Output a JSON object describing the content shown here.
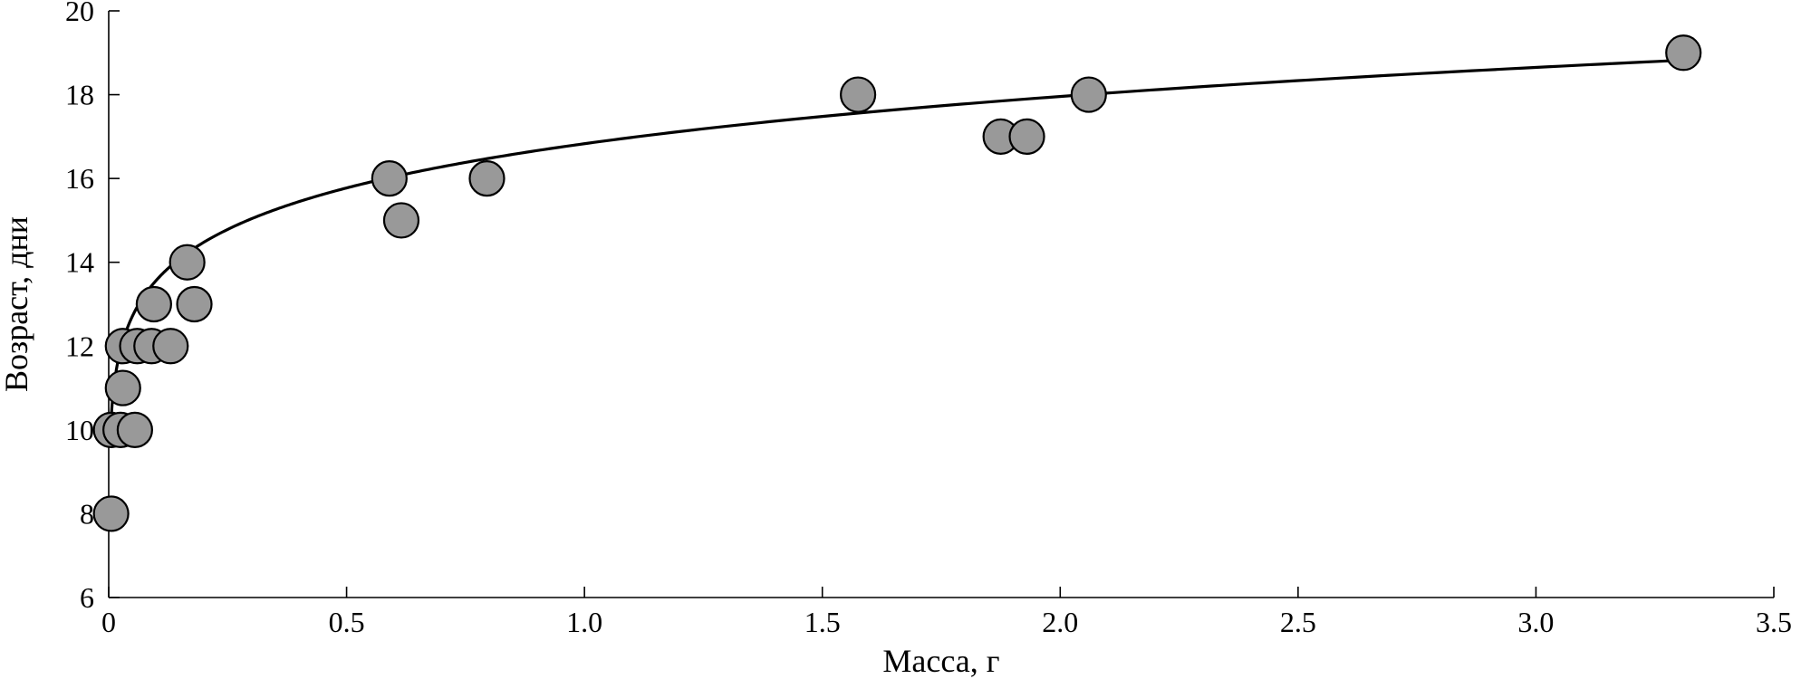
{
  "chart_data": {
    "type": "scatter",
    "xlabel": "Масса, г",
    "ylabel": "Возраст, дни",
    "xlim": [
      0,
      3.5
    ],
    "ylim": [
      6,
      20
    ],
    "x_ticks": [
      0,
      0.5,
      1.0,
      1.5,
      2.0,
      2.5,
      3.0,
      3.5
    ],
    "x_tick_labels": [
      "0",
      "0.5",
      "1.0",
      "1.5",
      "2.0",
      "2.5",
      "3.0",
      "3.5"
    ],
    "y_ticks": [
      6,
      8,
      10,
      12,
      14,
      16,
      18,
      20
    ],
    "y_tick_labels": [
      "6",
      "8",
      "10",
      "12",
      "14",
      "16",
      "18",
      "20"
    ],
    "grid": false,
    "marker_color": "#999999",
    "series": [
      {
        "points": [
          {
            "x": 0.005,
            "y": 8
          },
          {
            "x": 0.005,
            "y": 10
          },
          {
            "x": 0.025,
            "y": 10
          },
          {
            "x": 0.055,
            "y": 10
          },
          {
            "x": 0.03,
            "y": 11
          },
          {
            "x": 0.03,
            "y": 12
          },
          {
            "x": 0.06,
            "y": 12
          },
          {
            "x": 0.09,
            "y": 12
          },
          {
            "x": 0.13,
            "y": 12
          },
          {
            "x": 0.095,
            "y": 13
          },
          {
            "x": 0.18,
            "y": 13
          },
          {
            "x": 0.165,
            "y": 14
          },
          {
            "x": 0.59,
            "y": 16
          },
          {
            "x": 0.615,
            "y": 15
          },
          {
            "x": 0.795,
            "y": 16
          },
          {
            "x": 1.575,
            "y": 18
          },
          {
            "x": 1.875,
            "y": 17
          },
          {
            "x": 1.93,
            "y": 17
          },
          {
            "x": 2.06,
            "y": 18
          },
          {
            "x": 3.31,
            "y": 19
          }
        ]
      }
    ],
    "fit_curve": {
      "type": "power",
      "equation_form": "y = a * x^b",
      "a": 16.83,
      "b": 0.0935,
      "x_range": [
        0.005,
        3.31
      ]
    }
  }
}
